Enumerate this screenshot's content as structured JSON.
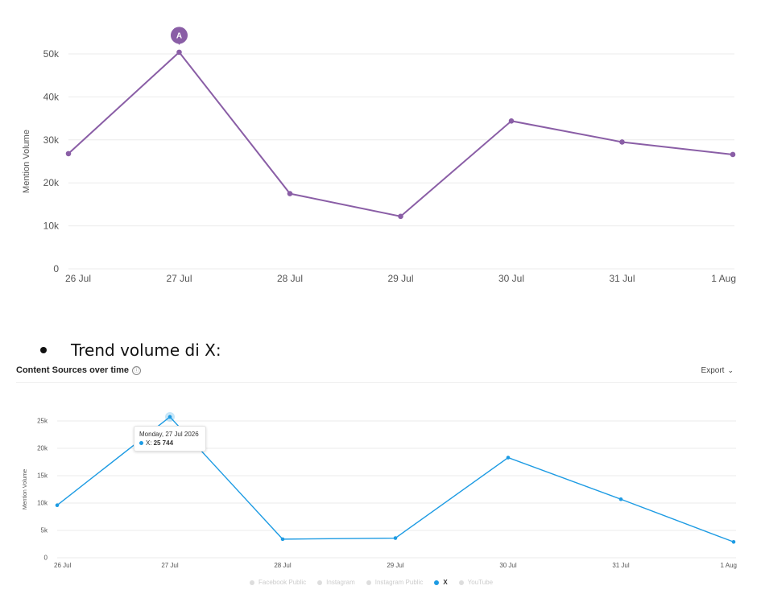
{
  "chart_data": [
    {
      "type": "line",
      "categories": [
        "26 Jul",
        "27 Jul",
        "28 Jul",
        "29 Jul",
        "30 Jul",
        "31 Jul",
        "1 Aug"
      ],
      "values": [
        26800,
        50400,
        17500,
        12200,
        34400,
        29500,
        26600
      ],
      "ylabel": "Mention Volume",
      "yticks": [
        "0",
        "10k",
        "20k",
        "30k",
        "40k",
        "50k"
      ],
      "ylim": [
        0,
        50000
      ],
      "color": "#8a5ea6",
      "annotation": {
        "label": "A",
        "category": "27 Jul"
      },
      "grid": true
    },
    {
      "type": "line",
      "title": "Content Sources over time",
      "categories": [
        "26 Jul",
        "27 Jul",
        "28 Jul",
        "29 Jul",
        "30 Jul",
        "31 Jul",
        "1 Aug"
      ],
      "series": [
        {
          "name": "X",
          "values": [
            9600,
            25744,
            3400,
            3600,
            18300,
            10700,
            2900
          ]
        }
      ],
      "ylabel": "Mention Volume",
      "yticks": [
        "0",
        "5k",
        "10k",
        "15k",
        "20k",
        "25k"
      ],
      "ylim": [
        0,
        25000
      ],
      "color": "#1d9be3",
      "legend": [
        "Facebook Public",
        "Instagram",
        "Instagram Public",
        "X",
        "YouTube"
      ],
      "grid": true
    }
  ],
  "bullet": {
    "text": "Trend volume di X:"
  },
  "panel": {
    "title": "Content Sources over time",
    "info_icon": "ⓘ",
    "export_label": "Export",
    "export_chevron": "⌄"
  },
  "tooltip": {
    "date": "Monday, 27 Jul 2026",
    "series": "X:",
    "value": "25 744"
  },
  "legend": {
    "items": [
      {
        "label": "Facebook Public",
        "active": false
      },
      {
        "label": "Instagram",
        "active": false
      },
      {
        "label": "Instagram Public",
        "active": false
      },
      {
        "label": "X",
        "active": true
      },
      {
        "label": "YouTube",
        "active": false
      }
    ]
  }
}
